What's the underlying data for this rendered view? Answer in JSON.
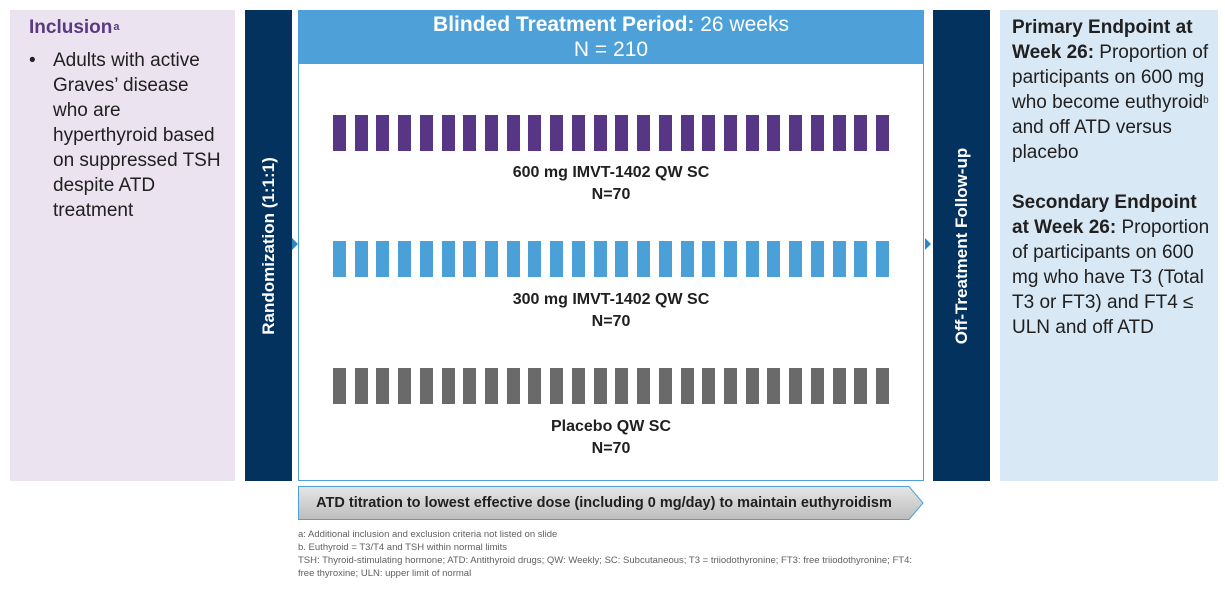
{
  "inclusion": {
    "title": "Inclusion",
    "superscript": "a",
    "bullet": "Adults with active Graves’ disease who are hyperthyroid based on suppressed TSH despite ATD treatment"
  },
  "randomization": {
    "label": "Randomization (1:1:1)"
  },
  "treatment": {
    "header_bold": "Blinded Treatment Period:",
    "header_rest": " 26 weeks",
    "total_n": "N = 210",
    "arms": [
      {
        "name": "600 mg IMVT-1402 QW SC",
        "n": "N=70",
        "color": "#563685"
      },
      {
        "name": "300 mg IMVT-1402 QW SC",
        "n": "N=70",
        "color": "#4ca0d8"
      },
      {
        "name": "Placebo QW SC",
        "n": "N=70",
        "color": "#6a6a6a"
      }
    ]
  },
  "follow_up": {
    "label": "Off-Treatment Follow-up"
  },
  "endpoints": {
    "primary_bold": "Primary Endpoint at Week 26:",
    "primary_text_1": " Proportion of participants on 600 mg who become euthyroid",
    "primary_sup": "b",
    "primary_text_2": " and off ATD versus placebo",
    "secondary_bold": "Secondary Endpoint at Week 26:",
    "secondary_text": " Proportion of participants on 600 mg who have T3 (Total T3 or FT3) and FT4 ≤ ULN and off ATD"
  },
  "atd_titration": "ATD titration to lowest effective dose (including 0 mg/day) to maintain euthyroidism",
  "footnotes": [
    "a: Additional inclusion and exclusion criteria not listed on slide",
    "b. Euthyroid = T3/T4 and TSH within normal limits",
    "TSH: Thyroid-stimulating hormone; ATD: Antithyroid drugs; QW: Weekly; SC: Subcutaneous; T3 = triiodothyronine; FT3: free triiodothyronine; FT4: free thyroxine; ULN: upper limit of normal"
  ],
  "colors": {
    "navy": "#03325e",
    "header_blue": "#4da1d8",
    "purple": "#563685",
    "light_blue": "#4ca0d8",
    "gray": "#6a6a6a"
  }
}
